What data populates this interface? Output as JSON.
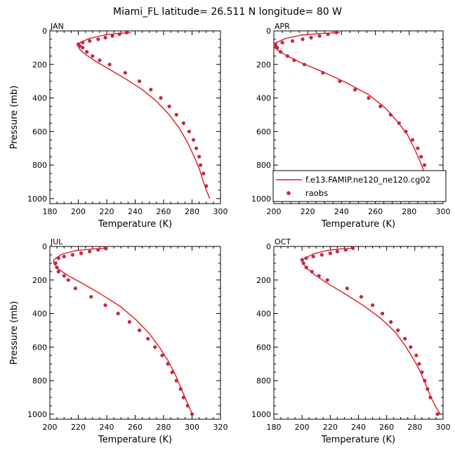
{
  "figure": {
    "title": "Miami_FL  latitude= 26.511 N longitude= 80 W",
    "line_color": "#dd1c1c",
    "dot_color": "#c4264a"
  },
  "legend": {
    "model_label": "f.e13.FAMIP.ne120_ne120.cg02",
    "obs_label": "raobs"
  },
  "chart_data": [
    {
      "type": "line",
      "panel": "JAN",
      "xlabel": "Temperature (K)",
      "ylabel": "Pressure (mb)",
      "xlim": [
        180,
        300
      ],
      "ylim": [
        1030,
        0
      ],
      "xticks": [
        180,
        200,
        220,
        240,
        260,
        280,
        300
      ],
      "yticks": [
        0,
        200,
        400,
        600,
        800,
        1000
      ],
      "series": [
        {
          "name": "f.e13.FAMIP.ne120_ne120.cg02",
          "style": "line",
          "x": [
            237,
            228,
            218,
            208,
            201,
            199.5,
            201,
            205,
            212,
            222,
            234,
            245,
            255,
            264,
            271,
            276.5,
            281,
            285,
            288,
            290.5,
            292.5
          ],
          "y": [
            10,
            15,
            25,
            45,
            70,
            85,
            110,
            140,
            180,
            230,
            290,
            350,
            420,
            500,
            580,
            660,
            740,
            820,
            900,
            960,
            1000
          ]
        },
        {
          "name": "raobs",
          "style": "marker",
          "x": [
            234,
            229,
            224,
            219,
            214,
            208,
            203,
            200,
            201,
            203,
            206,
            210,
            215,
            222,
            233,
            243,
            251,
            258,
            264,
            269,
            274,
            278,
            281,
            283,
            285,
            286,
            288,
            290
          ],
          "y": [
            10,
            20,
            30,
            40,
            50,
            60,
            70,
            80,
            90,
            100,
            125,
            150,
            175,
            200,
            250,
            300,
            350,
            400,
            450,
            500,
            550,
            600,
            650,
            700,
            750,
            800,
            850,
            925
          ]
        }
      ]
    },
    {
      "type": "line",
      "panel": "APR",
      "xlabel": "Temperature (K)",
      "ylabel": "",
      "xlim": [
        200,
        300
      ],
      "ylim": [
        1030,
        0
      ],
      "xticks": [
        200,
        220,
        240,
        260,
        280,
        300
      ],
      "yticks": [
        0,
        200,
        400,
        600,
        800,
        1000
      ],
      "series": [
        {
          "name": "f.e13.FAMIP.ne120_ne120.cg02",
          "style": "line",
          "x": [
            239,
            228,
            216,
            207,
            201.5,
            200,
            200.5,
            203,
            208,
            216,
            228,
            243,
            256,
            266,
            273,
            279,
            283,
            286.5,
            289.5,
            292,
            294.5
          ],
          "y": [
            10,
            15,
            25,
            45,
            70,
            85,
            100,
            120,
            150,
            190,
            240,
            310,
            380,
            460,
            540,
            620,
            700,
            780,
            860,
            940,
            1000
          ]
        },
        {
          "name": "raobs",
          "style": "marker",
          "x": [
            237,
            232,
            227,
            222,
            217,
            211,
            205,
            201,
            201,
            202,
            204,
            208,
            212,
            218,
            229,
            239,
            248,
            256,
            263,
            269,
            274,
            278,
            282,
            285,
            287,
            289,
            291,
            295
          ],
          "y": [
            10,
            20,
            30,
            40,
            50,
            60,
            70,
            80,
            90,
            100,
            125,
            150,
            175,
            200,
            250,
            300,
            350,
            400,
            450,
            500,
            550,
            600,
            650,
            700,
            750,
            800,
            850,
            1000
          ]
        }
      ]
    },
    {
      "type": "line",
      "panel": "JUL",
      "xlabel": "Temperature (K)",
      "ylabel": "Pressure (mb)",
      "xlim": [
        200,
        320
      ],
      "ylim": [
        1030,
        0
      ],
      "xticks": [
        200,
        220,
        240,
        260,
        280,
        300,
        320
      ],
      "yticks": [
        0,
        200,
        400,
        600,
        800,
        1000
      ],
      "series": [
        {
          "name": "f.e13.FAMIP.ne120_ne120.cg02",
          "style": "line",
          "x": [
            241,
            230,
            218,
            209,
            204,
            202.5,
            203,
            206,
            213,
            224,
            237,
            250,
            261,
            270,
            277,
            283,
            288,
            292,
            295.5,
            298.5,
            300.5
          ],
          "y": [
            10,
            15,
            25,
            45,
            70,
            85,
            105,
            135,
            175,
            225,
            290,
            360,
            440,
            520,
            600,
            680,
            760,
            840,
            910,
            970,
            1000
          ]
        },
        {
          "name": "raobs",
          "style": "marker",
          "x": [
            239,
            234,
            228,
            222,
            216,
            210,
            206,
            204,
            205,
            206,
            210,
            213,
            218,
            229,
            239,
            248,
            256,
            263,
            269,
            274,
            279,
            283,
            286,
            289,
            292,
            294,
            297,
            300
          ],
          "y": [
            10,
            20,
            30,
            40,
            50,
            60,
            70,
            100,
            125,
            150,
            175,
            200,
            250,
            300,
            350,
            400,
            450,
            500,
            550,
            600,
            650,
            700,
            750,
            800,
            850,
            900,
            950,
            1000
          ]
        }
      ]
    },
    {
      "type": "line",
      "panel": "OCT",
      "xlabel": "Temperature (K)",
      "ylabel": "",
      "xlim": [
        180,
        300
      ],
      "ylim": [
        1030,
        0
      ],
      "xticks": [
        180,
        200,
        220,
        240,
        260,
        280,
        300
      ],
      "yticks": [
        0,
        200,
        400,
        600,
        800,
        1000
      ],
      "series": [
        {
          "name": "f.e13.FAMIP.ne120_ne120.cg02",
          "style": "line",
          "x": [
            237,
            227,
            217,
            208,
            202,
            200,
            201,
            204,
            210,
            219,
            231,
            244,
            256,
            266,
            273,
            279,
            284,
            288,
            291.5,
            295,
            298
          ],
          "y": [
            10,
            15,
            25,
            45,
            70,
            85,
            105,
            135,
            175,
            225,
            285,
            355,
            430,
            510,
            590,
            670,
            750,
            830,
            900,
            960,
            1000
          ]
        },
        {
          "name": "raobs",
          "style": "marker",
          "x": [
            236,
            231,
            225,
            220,
            214,
            208,
            203,
            200,
            201,
            203,
            207,
            212,
            218,
            232,
            242,
            250,
            257,
            263,
            268,
            273,
            277,
            281,
            283,
            285,
            287,
            289,
            291,
            296
          ],
          "y": [
            10,
            20,
            30,
            40,
            50,
            60,
            70,
            80,
            100,
            125,
            150,
            175,
            200,
            250,
            300,
            350,
            400,
            450,
            500,
            550,
            600,
            650,
            700,
            750,
            800,
            850,
            900,
            1000
          ]
        }
      ]
    }
  ]
}
